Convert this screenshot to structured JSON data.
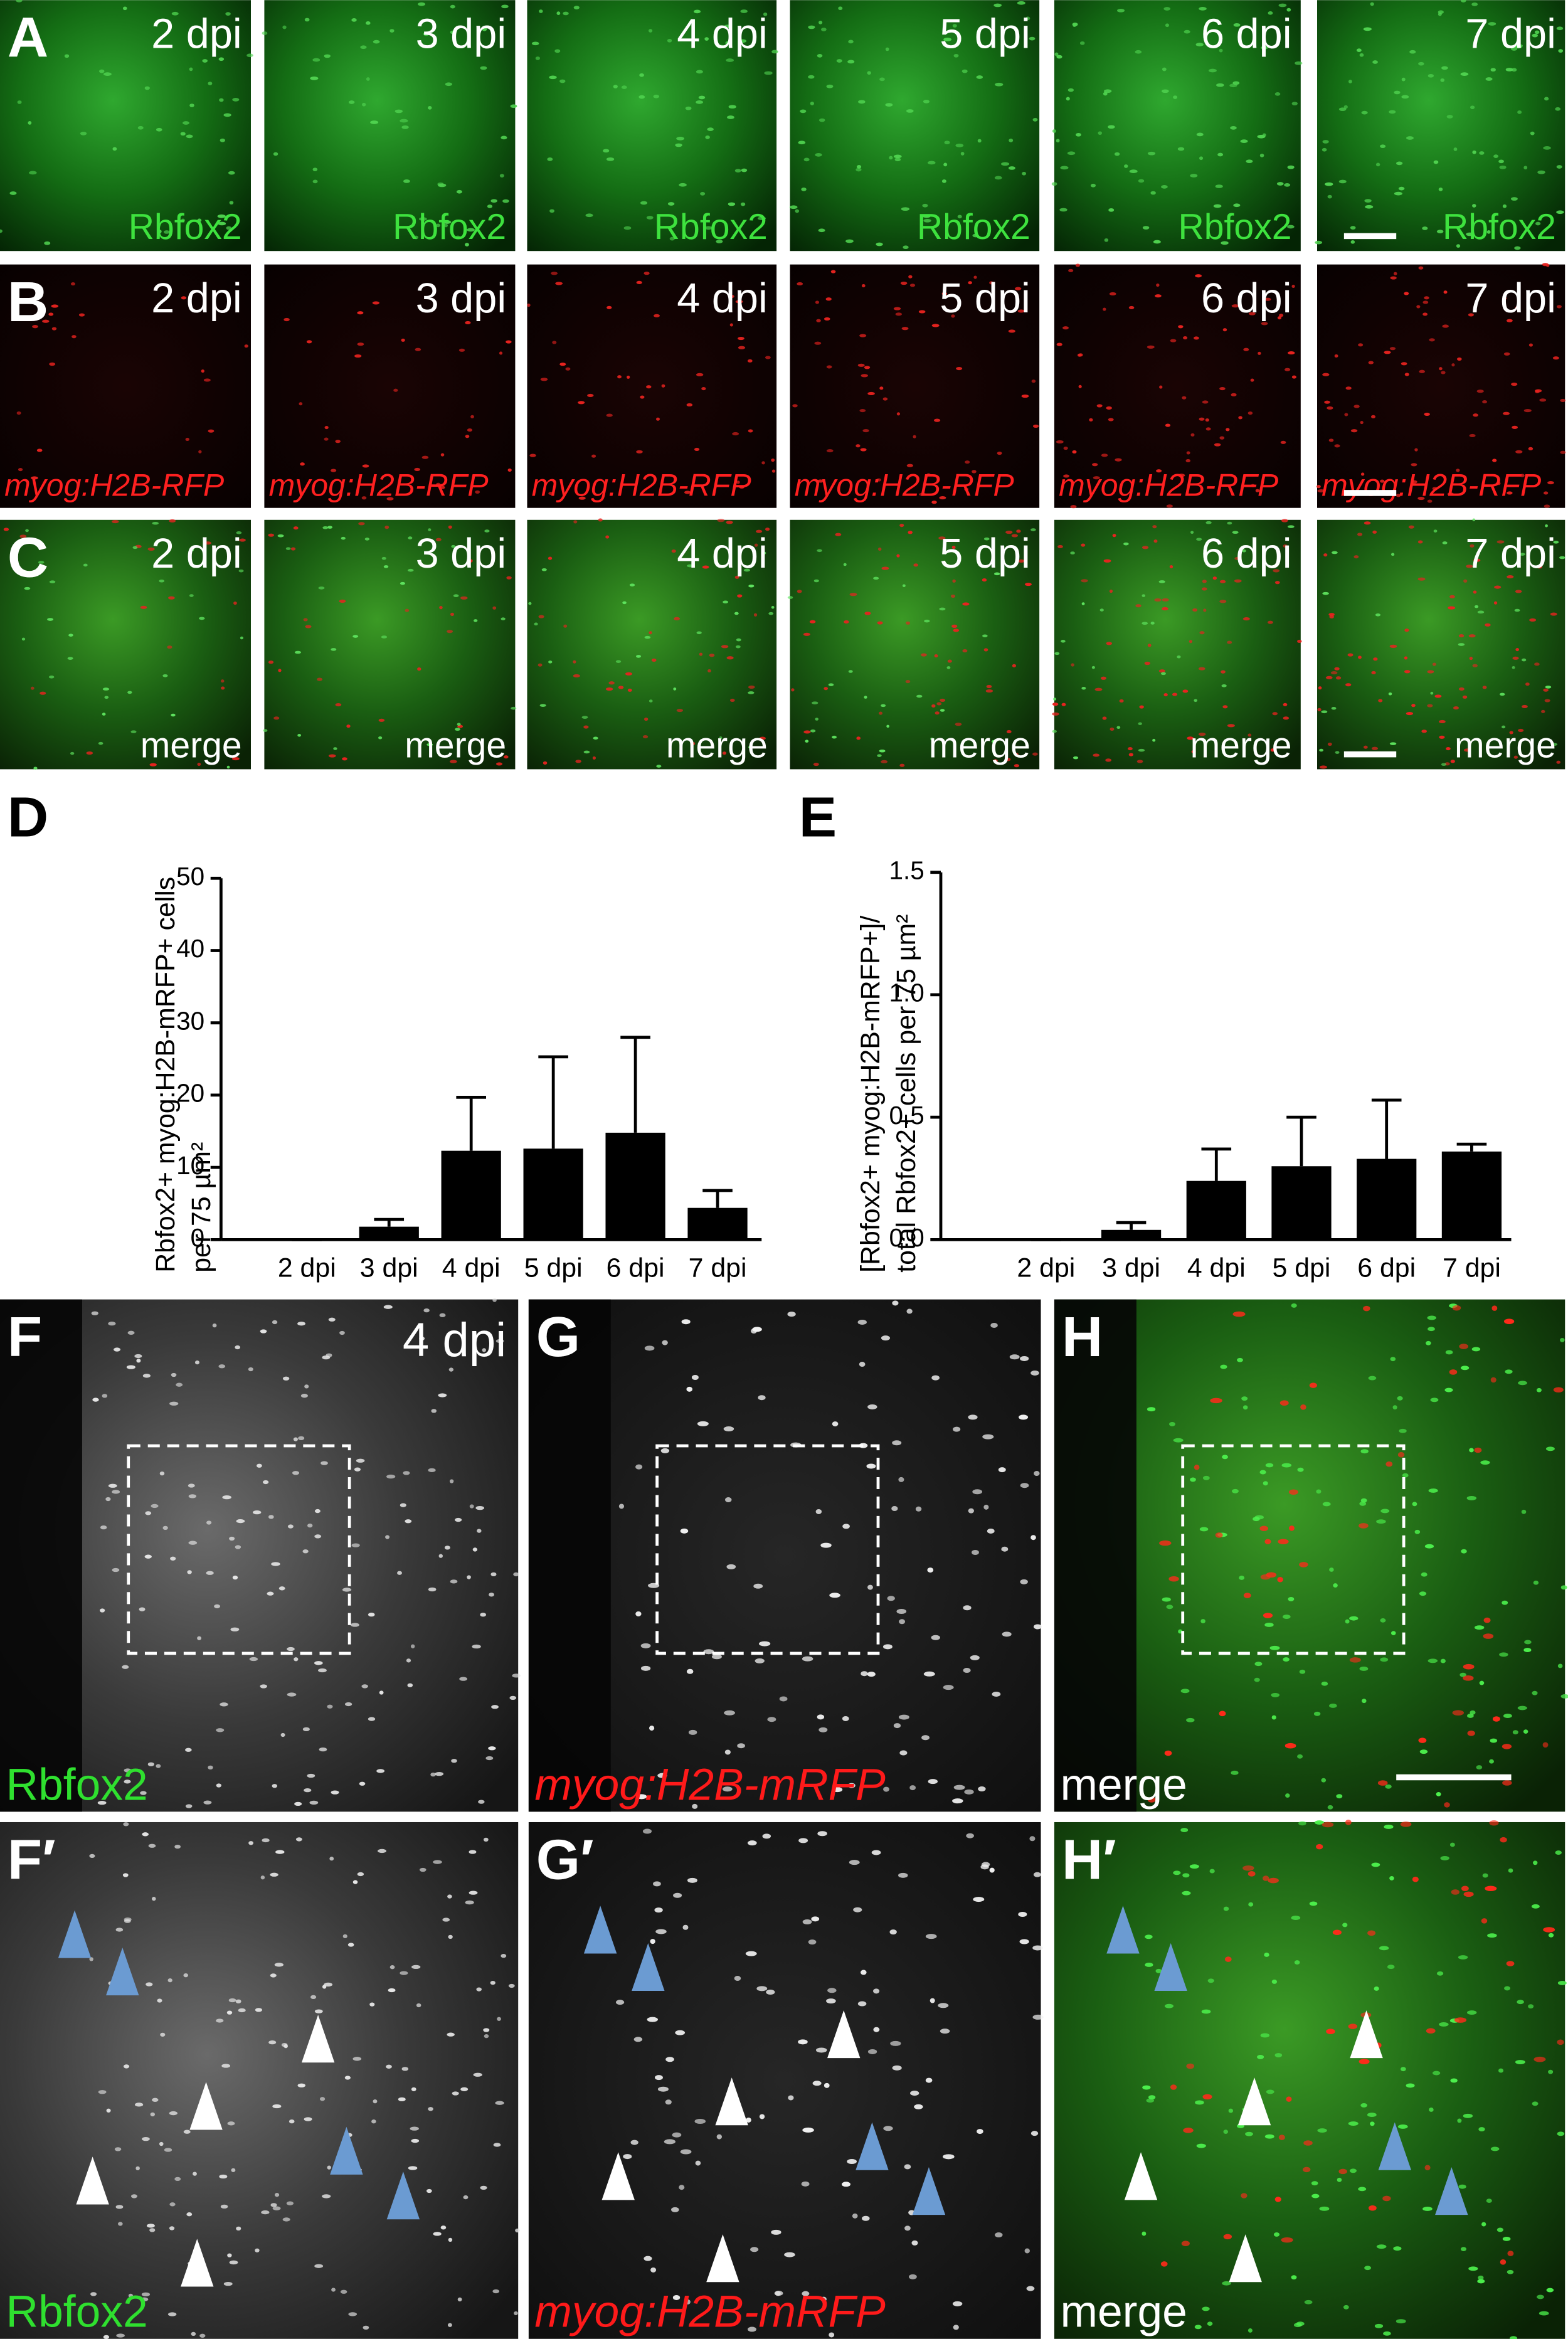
{
  "panel_rows": [
    {
      "letter": "A",
      "times": [
        "2 dpi",
        "3 dpi",
        "4 dpi",
        "5 dpi",
        "6 dpi",
        "7 dpi"
      ],
      "markers": [
        "Rbfox2",
        "Rbfox2",
        "Rbfox2",
        "Rbfox2",
        "Rbfox2",
        "Rbfox2"
      ]
    },
    {
      "letter": "B",
      "times": [
        "2 dpi",
        "3 dpi",
        "4 dpi",
        "5 dpi",
        "6 dpi",
        "7 dpi"
      ],
      "markers": [
        "myog:H2B-RFP",
        "myog:H2B-RFP",
        "myog:H2B-RFP",
        "myog:H2B-RFP",
        "myog:H2B-RFP",
        "myog:H2B-RFP"
      ]
    },
    {
      "letter": "C",
      "times": [
        "2 dpi",
        "3 dpi",
        "4 dpi",
        "5 dpi",
        "6 dpi",
        "7 dpi"
      ],
      "markers": [
        "merge",
        "merge",
        "merge",
        "merge",
        "merge",
        "merge"
      ]
    }
  ],
  "bottom_panels": [
    {
      "letter": "F",
      "time": "4 dpi",
      "marker": "Rbfox2"
    },
    {
      "letter": "G",
      "marker": "myog:H2B-mRFP"
    },
    {
      "letter": "H",
      "marker": "merge"
    }
  ],
  "detail_panels": [
    {
      "letter": "F′",
      "marker": "Rbfox2"
    },
    {
      "letter": "G′",
      "marker": "myog:H2B-mRFP"
    },
    {
      "letter": "H′",
      "marker": "merge"
    }
  ],
  "chart_data": [
    {
      "type": "bar",
      "panel": "D",
      "ylabel": [
        "Rbfox2+ myog:H2B-mRFP+ cells",
        "per 75 µm²"
      ],
      "categories": [
        "2 dpi",
        "3 dpi",
        "4 dpi",
        "5 dpi",
        "6 dpi",
        "7 dpi"
      ],
      "values": [
        0,
        1.8,
        12.3,
        12.6,
        14.8,
        4.4
      ],
      "errors": [
        0,
        1.0,
        7.4,
        12.7,
        13.2,
        2.4
      ],
      "color": "#000000",
      "ylim": [
        0,
        50
      ],
      "yticks": [
        0,
        10,
        20,
        30,
        40,
        50
      ]
    },
    {
      "type": "bar",
      "panel": "E",
      "ylabel": [
        "[Rbfox2+ myog:H2B-mRFP+]/",
        "total Rbfox2+ cells per 75 µm²"
      ],
      "categories": [
        "2 dpi",
        "3 dpi",
        "4 dpi",
        "5 dpi",
        "6 dpi",
        "7 dpi"
      ],
      "values": [
        0,
        0.04,
        0.24,
        0.3,
        0.33,
        0.36
      ],
      "errors": [
        0,
        0.03,
        0.13,
        0.2,
        0.24,
        0.03
      ],
      "color": "#000000",
      "ylim": [
        0,
        1.5
      ],
      "yticks": [
        {
          "value": 0,
          "label": "0.0"
        },
        {
          "value": 0.5,
          "label": "0.5"
        },
        {
          "value": 1,
          "label": "1.0"
        },
        {
          "value": 1.5,
          "label": "1.5"
        }
      ]
    }
  ]
}
